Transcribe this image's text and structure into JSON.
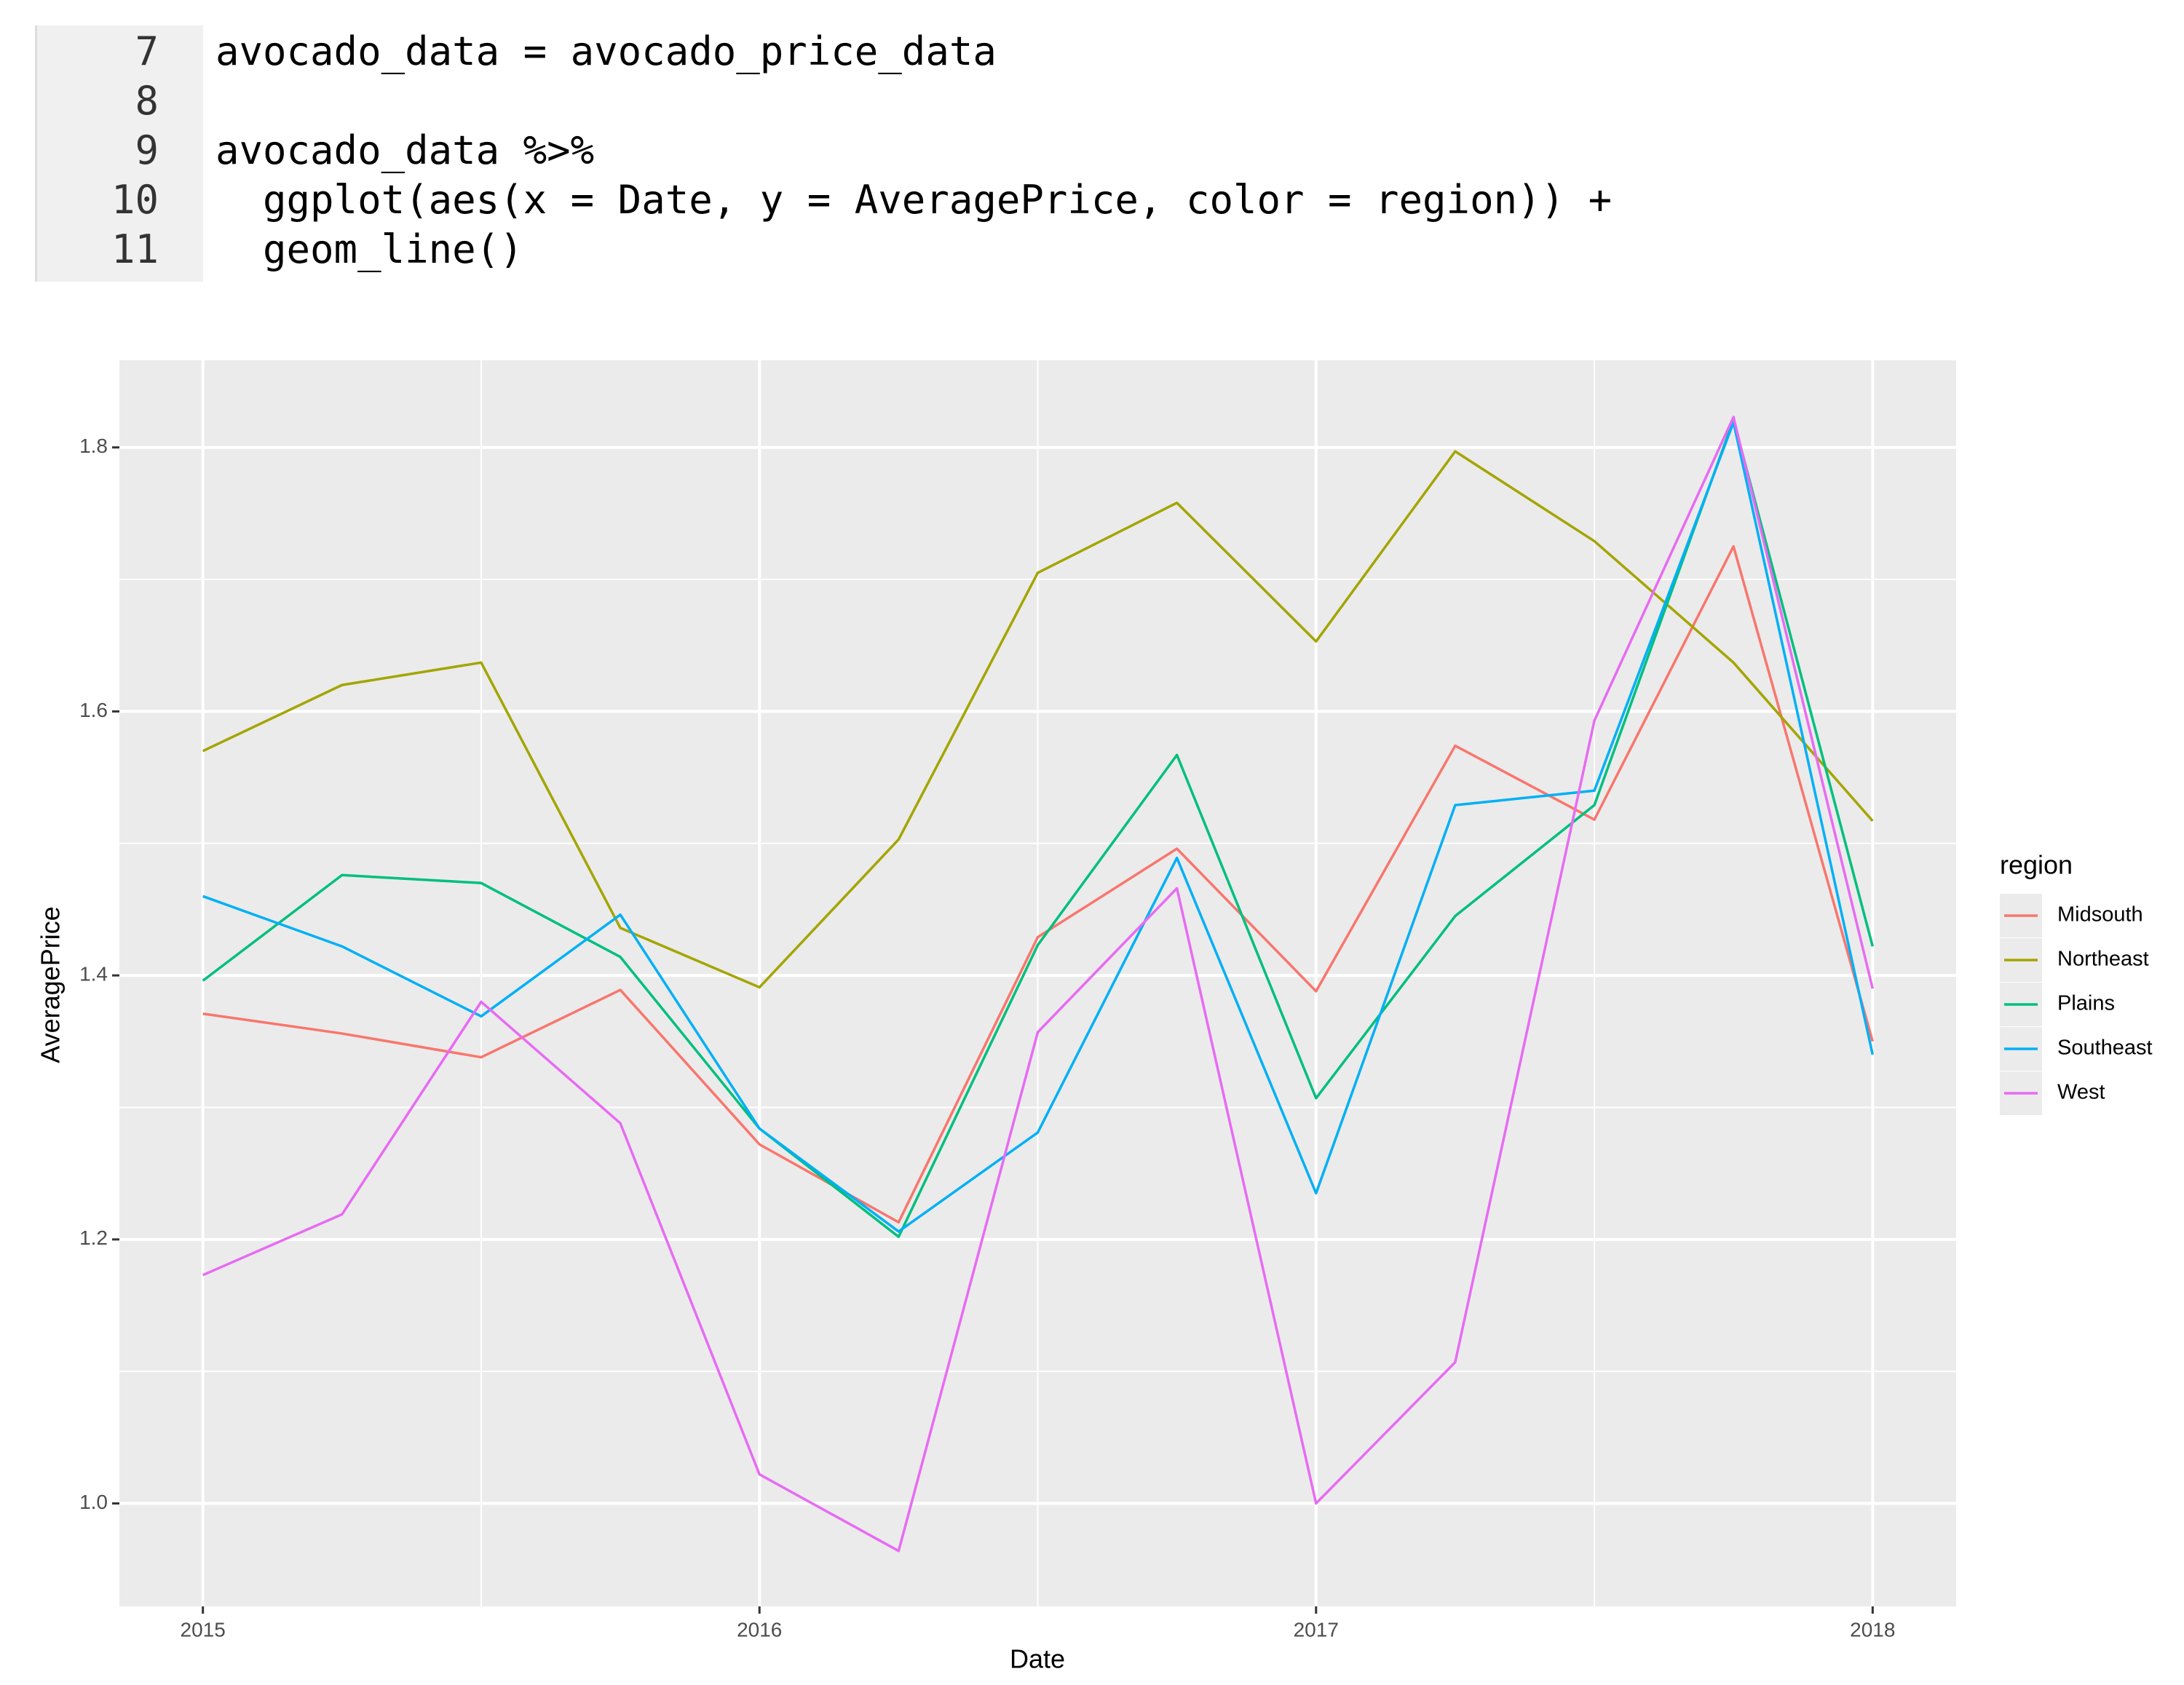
{
  "code": {
    "lines": [
      {
        "number": "7",
        "text": "avocado_data = avocado_price_data"
      },
      {
        "number": "8"
      },
      {
        "number": "9",
        "text": "avocado_data %>%"
      },
      {
        "number": "10",
        "text": "  ggplot(aes(x = Date, y = AveragePrice, color = region)) +"
      },
      {
        "number": "11",
        "text": "  geom_line()"
      }
    ]
  },
  "chart_data": {
    "type": "line",
    "x_label": "Date",
    "y_label": "AveragePrice",
    "legend_title": "region",
    "legend": "right",
    "grid": true,
    "x": [
      2015,
      2015.25,
      2015.5,
      2015.75,
      2016,
      2016.25,
      2016.5,
      2016.75,
      2017,
      2017.25,
      2017.5,
      2017.75,
      2018
    ],
    "xlim": [
      2014.85,
      2018.15
    ],
    "xticks": [
      2015,
      2016,
      2017,
      2018
    ],
    "xminor": [
      2015.5,
      2016.5,
      2017.5
    ],
    "ylim": [
      0.922,
      1.866
    ],
    "yticks": [
      {
        "value": 1,
        "label": "1.0"
      },
      1.2,
      1.4,
      1.6,
      1.8
    ],
    "yminor": [
      1.1,
      1.3,
      1.5,
      1.7
    ],
    "series": [
      {
        "name": "Midsouth",
        "color": "#F8766D",
        "values": [
          1.371,
          1.356,
          1.338,
          1.389,
          1.272,
          1.213,
          1.429,
          1.496,
          1.388,
          1.574,
          1.518,
          1.725,
          1.35
        ]
      },
      {
        "name": "Northeast",
        "color": "#A3A500",
        "values": [
          1.57,
          1.62,
          1.637,
          1.436,
          1.391,
          1.503,
          1.705,
          1.758,
          1.653,
          1.797,
          1.729,
          1.637,
          1.517
        ]
      },
      {
        "name": "Plains",
        "color": "#00BF7D",
        "values": [
          1.396,
          1.476,
          1.47,
          1.414,
          1.284,
          1.202,
          1.423,
          1.567,
          1.307,
          1.445,
          1.529,
          1.821,
          1.422
        ]
      },
      {
        "name": "Southeast",
        "color": "#00B0F6",
        "values": [
          1.46,
          1.422,
          1.369,
          1.446,
          1.284,
          1.206,
          1.281,
          1.489,
          1.235,
          1.529,
          1.54,
          1.819,
          1.34
        ]
      },
      {
        "name": "West",
        "color": "#E76BF3",
        "values": [
          1.173,
          1.219,
          1.38,
          1.288,
          1.022,
          0.964,
          1.357,
          1.466,
          1.0,
          1.107,
          1.593,
          1.823,
          1.39
        ]
      }
    ]
  }
}
